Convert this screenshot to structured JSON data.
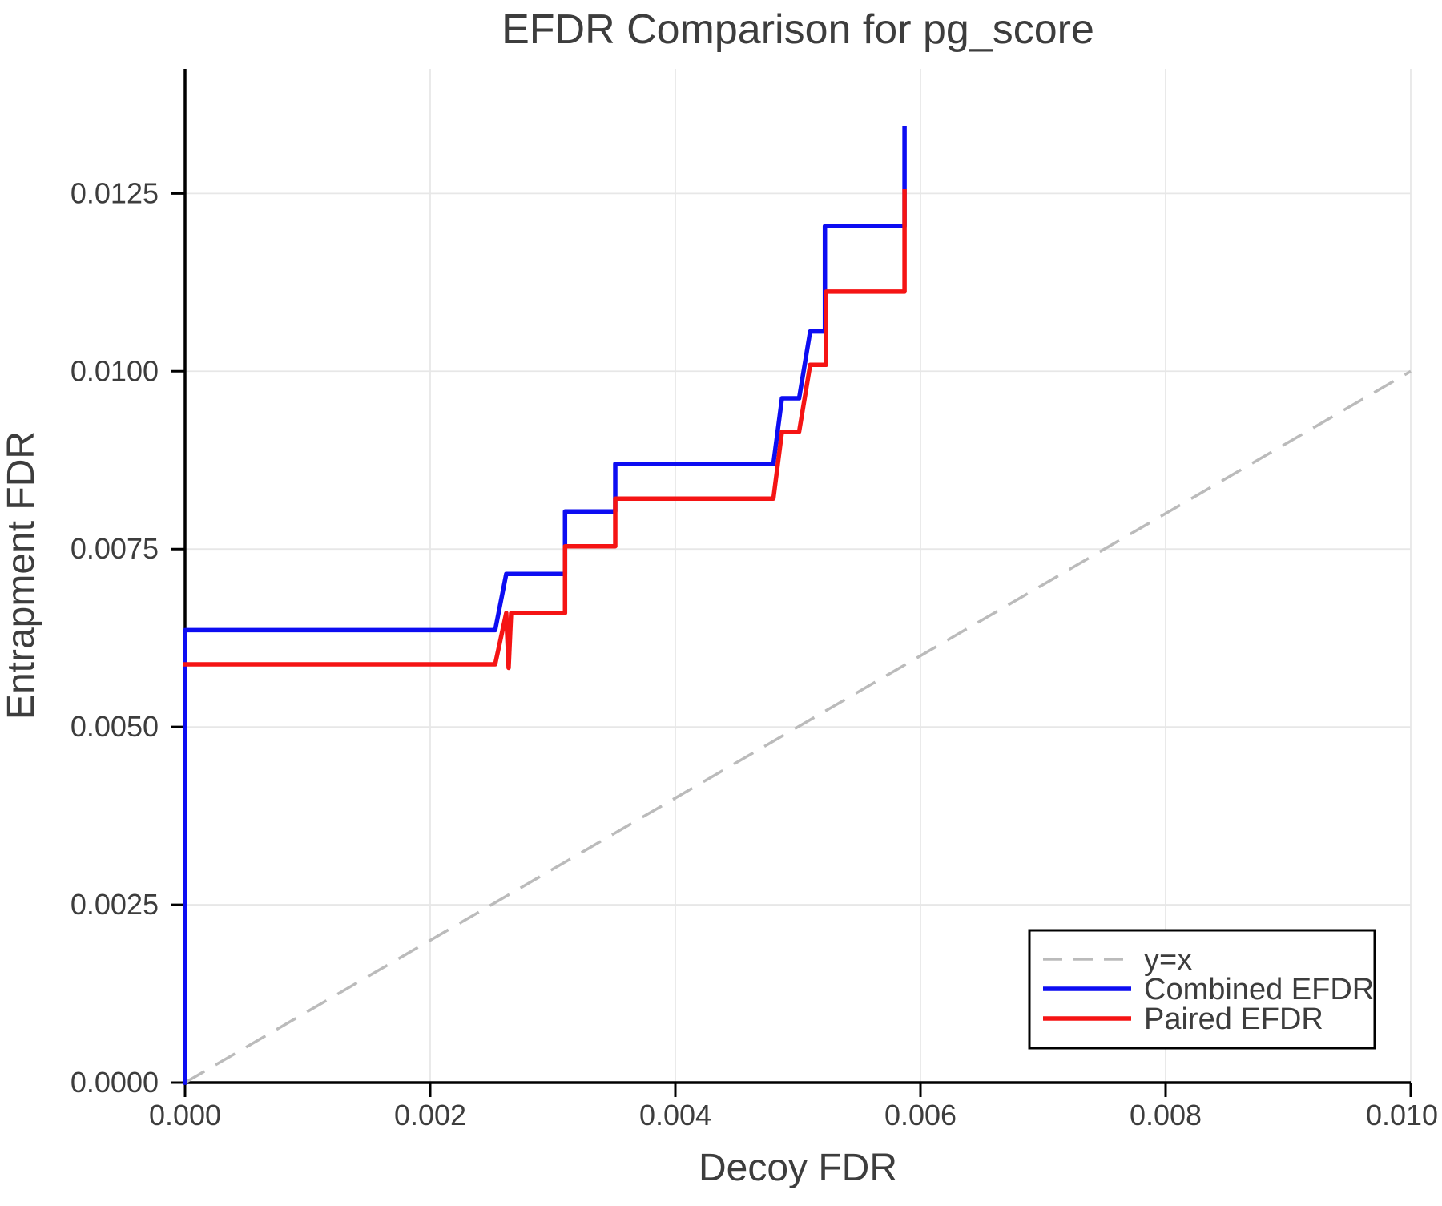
{
  "chart_data": {
    "type": "line",
    "title": "EFDR Comparison for pg_score",
    "xlabel": "Decoy FDR",
    "ylabel": "Entrapment FDR",
    "xlim": [
      0.0,
      0.01
    ],
    "ylim": [
      0.0,
      0.01425
    ],
    "grid": true,
    "legend_position": "lower right",
    "x_ticks": [
      0.0,
      0.002,
      0.004,
      0.006,
      0.008,
      0.01
    ],
    "x_tick_labels": [
      "0.000",
      "0.002",
      "0.004",
      "0.006",
      "0.008",
      "0.010"
    ],
    "y_ticks": [
      0.0,
      0.0025,
      0.005,
      0.0075,
      0.01,
      0.0125
    ],
    "y_tick_labels": [
      "0.0000",
      "0.0025",
      "0.0050",
      "0.0075",
      "0.0100",
      "0.0125"
    ],
    "colors": {
      "grid": "#e7e7e7",
      "spine": "#000000",
      "text": "#3d3d3d",
      "legend_border": "#000000",
      "background": "#ffffff"
    },
    "reference_line": {
      "label": "y=x",
      "style": "dashed",
      "color": "#bbbbbb",
      "points": [
        [
          0.0,
          0.0
        ],
        [
          0.01,
          0.01
        ]
      ]
    },
    "series": [
      {
        "name": "Combined EFDR",
        "color": "#0d0df2",
        "style": "solid",
        "points": [
          [
            0.0,
            0.0
          ],
          [
            0.0,
            0.00636
          ],
          [
            0.00253,
            0.00636
          ],
          [
            0.00262,
            0.00715
          ],
          [
            0.0031,
            0.00715
          ],
          [
            0.0031,
            0.00803
          ],
          [
            0.00351,
            0.00803
          ],
          [
            0.00351,
            0.0087
          ],
          [
            0.0048,
            0.0087
          ],
          [
            0.00487,
            0.00962
          ],
          [
            0.00501,
            0.00962
          ],
          [
            0.0051,
            0.01056
          ],
          [
            0.00522,
            0.01056
          ],
          [
            0.00522,
            0.01204
          ],
          [
            0.00587,
            0.01204
          ],
          [
            0.00587,
            0.01342
          ]
        ]
      },
      {
        "name": "Paired EFDR",
        "color": "#f51414",
        "style": "solid",
        "points": [
          [
            0.0,
            0.00588
          ],
          [
            0.00253,
            0.00588
          ],
          [
            0.00262,
            0.0066
          ],
          [
            0.00264,
            0.00583
          ],
          [
            0.00266,
            0.0066
          ],
          [
            0.0031,
            0.0066
          ],
          [
            0.0031,
            0.00754
          ],
          [
            0.00351,
            0.00754
          ],
          [
            0.00351,
            0.00821
          ],
          [
            0.0048,
            0.00821
          ],
          [
            0.00487,
            0.00915
          ],
          [
            0.00501,
            0.00915
          ],
          [
            0.0051,
            0.01009
          ],
          [
            0.00523,
            0.01009
          ],
          [
            0.00523,
            0.01112
          ],
          [
            0.00587,
            0.01112
          ],
          [
            0.00587,
            0.01253
          ]
        ]
      }
    ]
  }
}
